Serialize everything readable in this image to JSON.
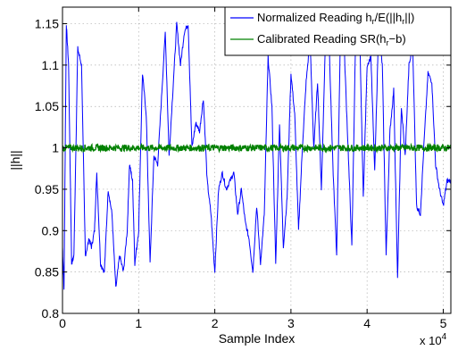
{
  "chart_data": {
    "type": "line",
    "xlabel": "Sample Index",
    "ylabel": "||h||",
    "xlim": [
      0,
      5.1
    ],
    "ylim": [
      0.8,
      1.17
    ],
    "x_multiplier_label": "x 10",
    "x_multiplier_exp": "4",
    "x_ticks": [
      0,
      1,
      2,
      3,
      4,
      5
    ],
    "x_tick_labels": [
      "0",
      "1",
      "2",
      "3",
      "4",
      "5"
    ],
    "y_ticks": [
      0.8,
      0.85,
      0.9,
      0.95,
      1.0,
      1.05,
      1.1,
      1.15
    ],
    "y_tick_labels": [
      "0.8",
      "0.85",
      "0.9",
      "0.95",
      "1",
      "1.05",
      "1.1",
      "1.15"
    ],
    "grid": true,
    "legend_position": "top-right",
    "legend": [
      {
        "main": "Normalized Reading h",
        "sub": "r",
        "rest": "/E(||h",
        "sub2": "r",
        "end": "||)"
      },
      {
        "main": "Calibrated Reading SR(h",
        "sub": "r",
        "rest": "−b)",
        "sub2": "",
        "end": ""
      }
    ],
    "series": [
      {
        "name": "Normalized Reading h_r/E(||h_r||)",
        "color": "#0000ff",
        "x": [
          0.0,
          0.02,
          0.05,
          0.08,
          0.12,
          0.15,
          0.2,
          0.25,
          0.3,
          0.35,
          0.38,
          0.42,
          0.45,
          0.5,
          0.55,
          0.6,
          0.65,
          0.7,
          0.75,
          0.8,
          0.85,
          0.88,
          0.92,
          0.95,
          1.0,
          1.05,
          1.1,
          1.15,
          1.2,
          1.25,
          1.3,
          1.35,
          1.4,
          1.45,
          1.5,
          1.55,
          1.6,
          1.65,
          1.7,
          1.75,
          1.8,
          1.85,
          1.9,
          1.95,
          2.0,
          2.05,
          2.1,
          2.15,
          2.2,
          2.25,
          2.3,
          2.35,
          2.4,
          2.45,
          2.5,
          2.55,
          2.6,
          2.65,
          2.7,
          2.75,
          2.8,
          2.85,
          2.9,
          2.95,
          3.0,
          3.05,
          3.1,
          3.15,
          3.2,
          3.25,
          3.3,
          3.35,
          3.4,
          3.45,
          3.5,
          3.55,
          3.6,
          3.65,
          3.7,
          3.75,
          3.8,
          3.85,
          3.9,
          3.95,
          4.0,
          4.05,
          4.1,
          4.15,
          4.2,
          4.25,
          4.3,
          4.35,
          4.4,
          4.45,
          4.5,
          4.55,
          4.6,
          4.65,
          4.7,
          4.75,
          4.8,
          4.85,
          4.9,
          4.95,
          5.0,
          5.05,
          5.1
        ],
        "y": [
          0.88,
          0.83,
          1.15,
          1.1,
          0.86,
          0.87,
          1.12,
          1.1,
          0.87,
          0.89,
          0.88,
          0.9,
          0.97,
          0.86,
          0.85,
          0.95,
          0.92,
          0.83,
          0.87,
          0.85,
          0.9,
          0.98,
          0.96,
          0.86,
          0.9,
          1.09,
          1.04,
          0.86,
          0.99,
          0.98,
          1.06,
          1.14,
          0.99,
          1.07,
          1.15,
          1.1,
          1.14,
          1.15,
          1.0,
          1.03,
          1.02,
          1.06,
          0.96,
          0.92,
          0.85,
          0.95,
          0.97,
          0.95,
          0.96,
          0.97,
          0.92,
          0.95,
          0.91,
          0.89,
          0.85,
          0.93,
          0.86,
          0.92,
          1.11,
          1.05,
          0.86,
          1.03,
          0.88,
          0.94,
          1.09,
          1.04,
          0.9,
          1.0,
          1.08,
          1.13,
          1.0,
          1.08,
          0.95,
          1.12,
          1.13,
          0.98,
          0.87,
          1.14,
          1.12,
          1.0,
          0.88,
          1.14,
          1.15,
          0.94,
          1.1,
          1.11,
          0.97,
          1.14,
          1.1,
          0.87,
          1.02,
          1.07,
          0.84,
          1.05,
          0.99,
          1.1,
          1.12,
          0.93,
          0.92,
          1.01,
          1.09,
          1.08,
          0.98,
          0.95,
          0.93,
          0.96,
          0.96
        ]
      },
      {
        "name": "Calibrated Reading SR(h_r−b)",
        "color": "#008000",
        "constant_y": 1.0,
        "noise": 0.004
      }
    ]
  }
}
